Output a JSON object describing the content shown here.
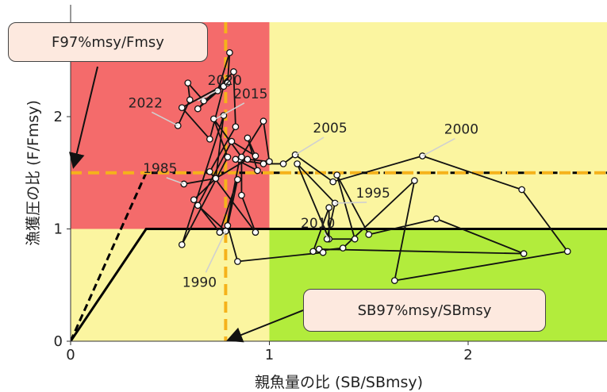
{
  "chart_data": {
    "type": "scatter",
    "xlabel": "親魚量の比 (SB/SBmsy)",
    "ylabel": "漁獲圧の比 (F/Fmsy)",
    "xlim": [
      0,
      2.7
    ],
    "ylim": [
      0,
      2.7
    ],
    "xticks": [
      "0",
      "1",
      "2"
    ],
    "yticks": [
      "0",
      "1",
      "2"
    ],
    "zones": {
      "red": "#f46b6b",
      "yellow": "#fbf5a0",
      "green": "#b2ec3c"
    },
    "reference_lines": {
      "sb_ratio": 0.78,
      "f_ratio": 1.5,
      "color": "#f5b21b"
    },
    "harvest_control_rules": [
      {
        "style": "solid",
        "points": [
          [
            0,
            0
          ],
          [
            0.38,
            1.0
          ],
          [
            2.7,
            1.0
          ]
        ]
      },
      {
        "style": "dashed",
        "points": [
          [
            0,
            0
          ],
          [
            0.38,
            1.5
          ],
          [
            2.7,
            1.5
          ]
        ]
      }
    ],
    "series": [
      {
        "type": "trajectory",
        "points": [
          [
            0.57,
            1.4
          ],
          [
            0.73,
            1.45
          ],
          [
            0.89,
            1.62
          ],
          [
            1.0,
            1.6
          ],
          [
            0.97,
            1.96
          ],
          [
            0.85,
            1.62
          ],
          [
            0.78,
            0.98
          ],
          [
            0.64,
            1.21
          ],
          [
            0.81,
            1.78
          ],
          [
            0.93,
            1.65
          ],
          [
            0.89,
            1.81
          ],
          [
            0.94,
            1.52
          ],
          [
            0.83,
            1.62
          ],
          [
            0.97,
            1.58
          ],
          [
            1.07,
            1.58
          ],
          [
            1.13,
            1.66
          ],
          [
            1.32,
            1.42
          ],
          [
            1.77,
            1.65
          ],
          [
            2.27,
            1.35
          ],
          [
            2.5,
            0.8
          ],
          [
            1.63,
            0.54
          ],
          [
            1.73,
            1.43
          ],
          [
            1.37,
            0.83
          ],
          [
            1.22,
            0.8
          ],
          [
            1.3,
            1.19
          ],
          [
            1.3,
            0.91
          ],
          [
            1.14,
            1.58
          ],
          [
            1.33,
            1.23
          ],
          [
            1.29,
            0.91
          ],
          [
            1.43,
            0.91
          ],
          [
            1.34,
            1.48
          ],
          [
            1.5,
            0.95
          ],
          [
            1.84,
            1.09
          ],
          [
            2.28,
            0.78
          ],
          [
            1.25,
            0.82
          ],
          [
            1.27,
            0.79
          ],
          [
            0.84,
            0.71
          ],
          [
            0.79,
            1.03
          ],
          [
            0.84,
            1.44
          ],
          [
            0.75,
            0.97
          ],
          [
            0.62,
            1.26
          ],
          [
            0.73,
            1.45
          ],
          [
            0.77,
            2.01
          ],
          [
            0.56,
            0.86
          ],
          [
            0.79,
            1.64
          ],
          [
            0.72,
            1.98
          ],
          [
            0.86,
            1.64
          ],
          [
            0.86,
            1.3
          ],
          [
            0.93,
            0.97
          ],
          [
            0.7,
            1.51
          ],
          [
            0.83,
            1.91
          ],
          [
            0.82,
            2.4
          ],
          [
            0.64,
            2.07
          ],
          [
            0.77,
            2.27
          ],
          [
            0.7,
            1.8
          ],
          [
            0.56,
            2.08
          ],
          [
            0.79,
            2.3
          ],
          [
            0.8,
            2.57
          ],
          [
            0.74,
            2.23
          ],
          [
            0.67,
            2.14
          ],
          [
            0.59,
            2.3
          ],
          [
            0.6,
            2.15
          ],
          [
            0.54,
            1.92
          ]
        ]
      }
    ],
    "annotations": [
      {
        "text": "1985",
        "x": 0.57,
        "y": 1.4
      },
      {
        "text": "1990",
        "x": 0.78,
        "y": 0.98
      },
      {
        "text": "1995",
        "x": 1.33,
        "y": 1.23
      },
      {
        "text": "2000",
        "x": 1.77,
        "y": 1.65
      },
      {
        "text": "2005",
        "x": 1.13,
        "y": 1.66
      },
      {
        "text": "2010",
        "x": 1.3,
        "y": 0.91
      },
      {
        "text": "2015",
        "x": 0.73,
        "y": 1.98
      },
      {
        "text": "2020",
        "x": 0.64,
        "y": 2.14
      },
      {
        "text": "2022",
        "x": 0.54,
        "y": 1.92
      }
    ],
    "callouts": {
      "f_ref": "F97%msy/Fmsy",
      "sb_ref": "SB97%msy/SBmsy"
    }
  }
}
